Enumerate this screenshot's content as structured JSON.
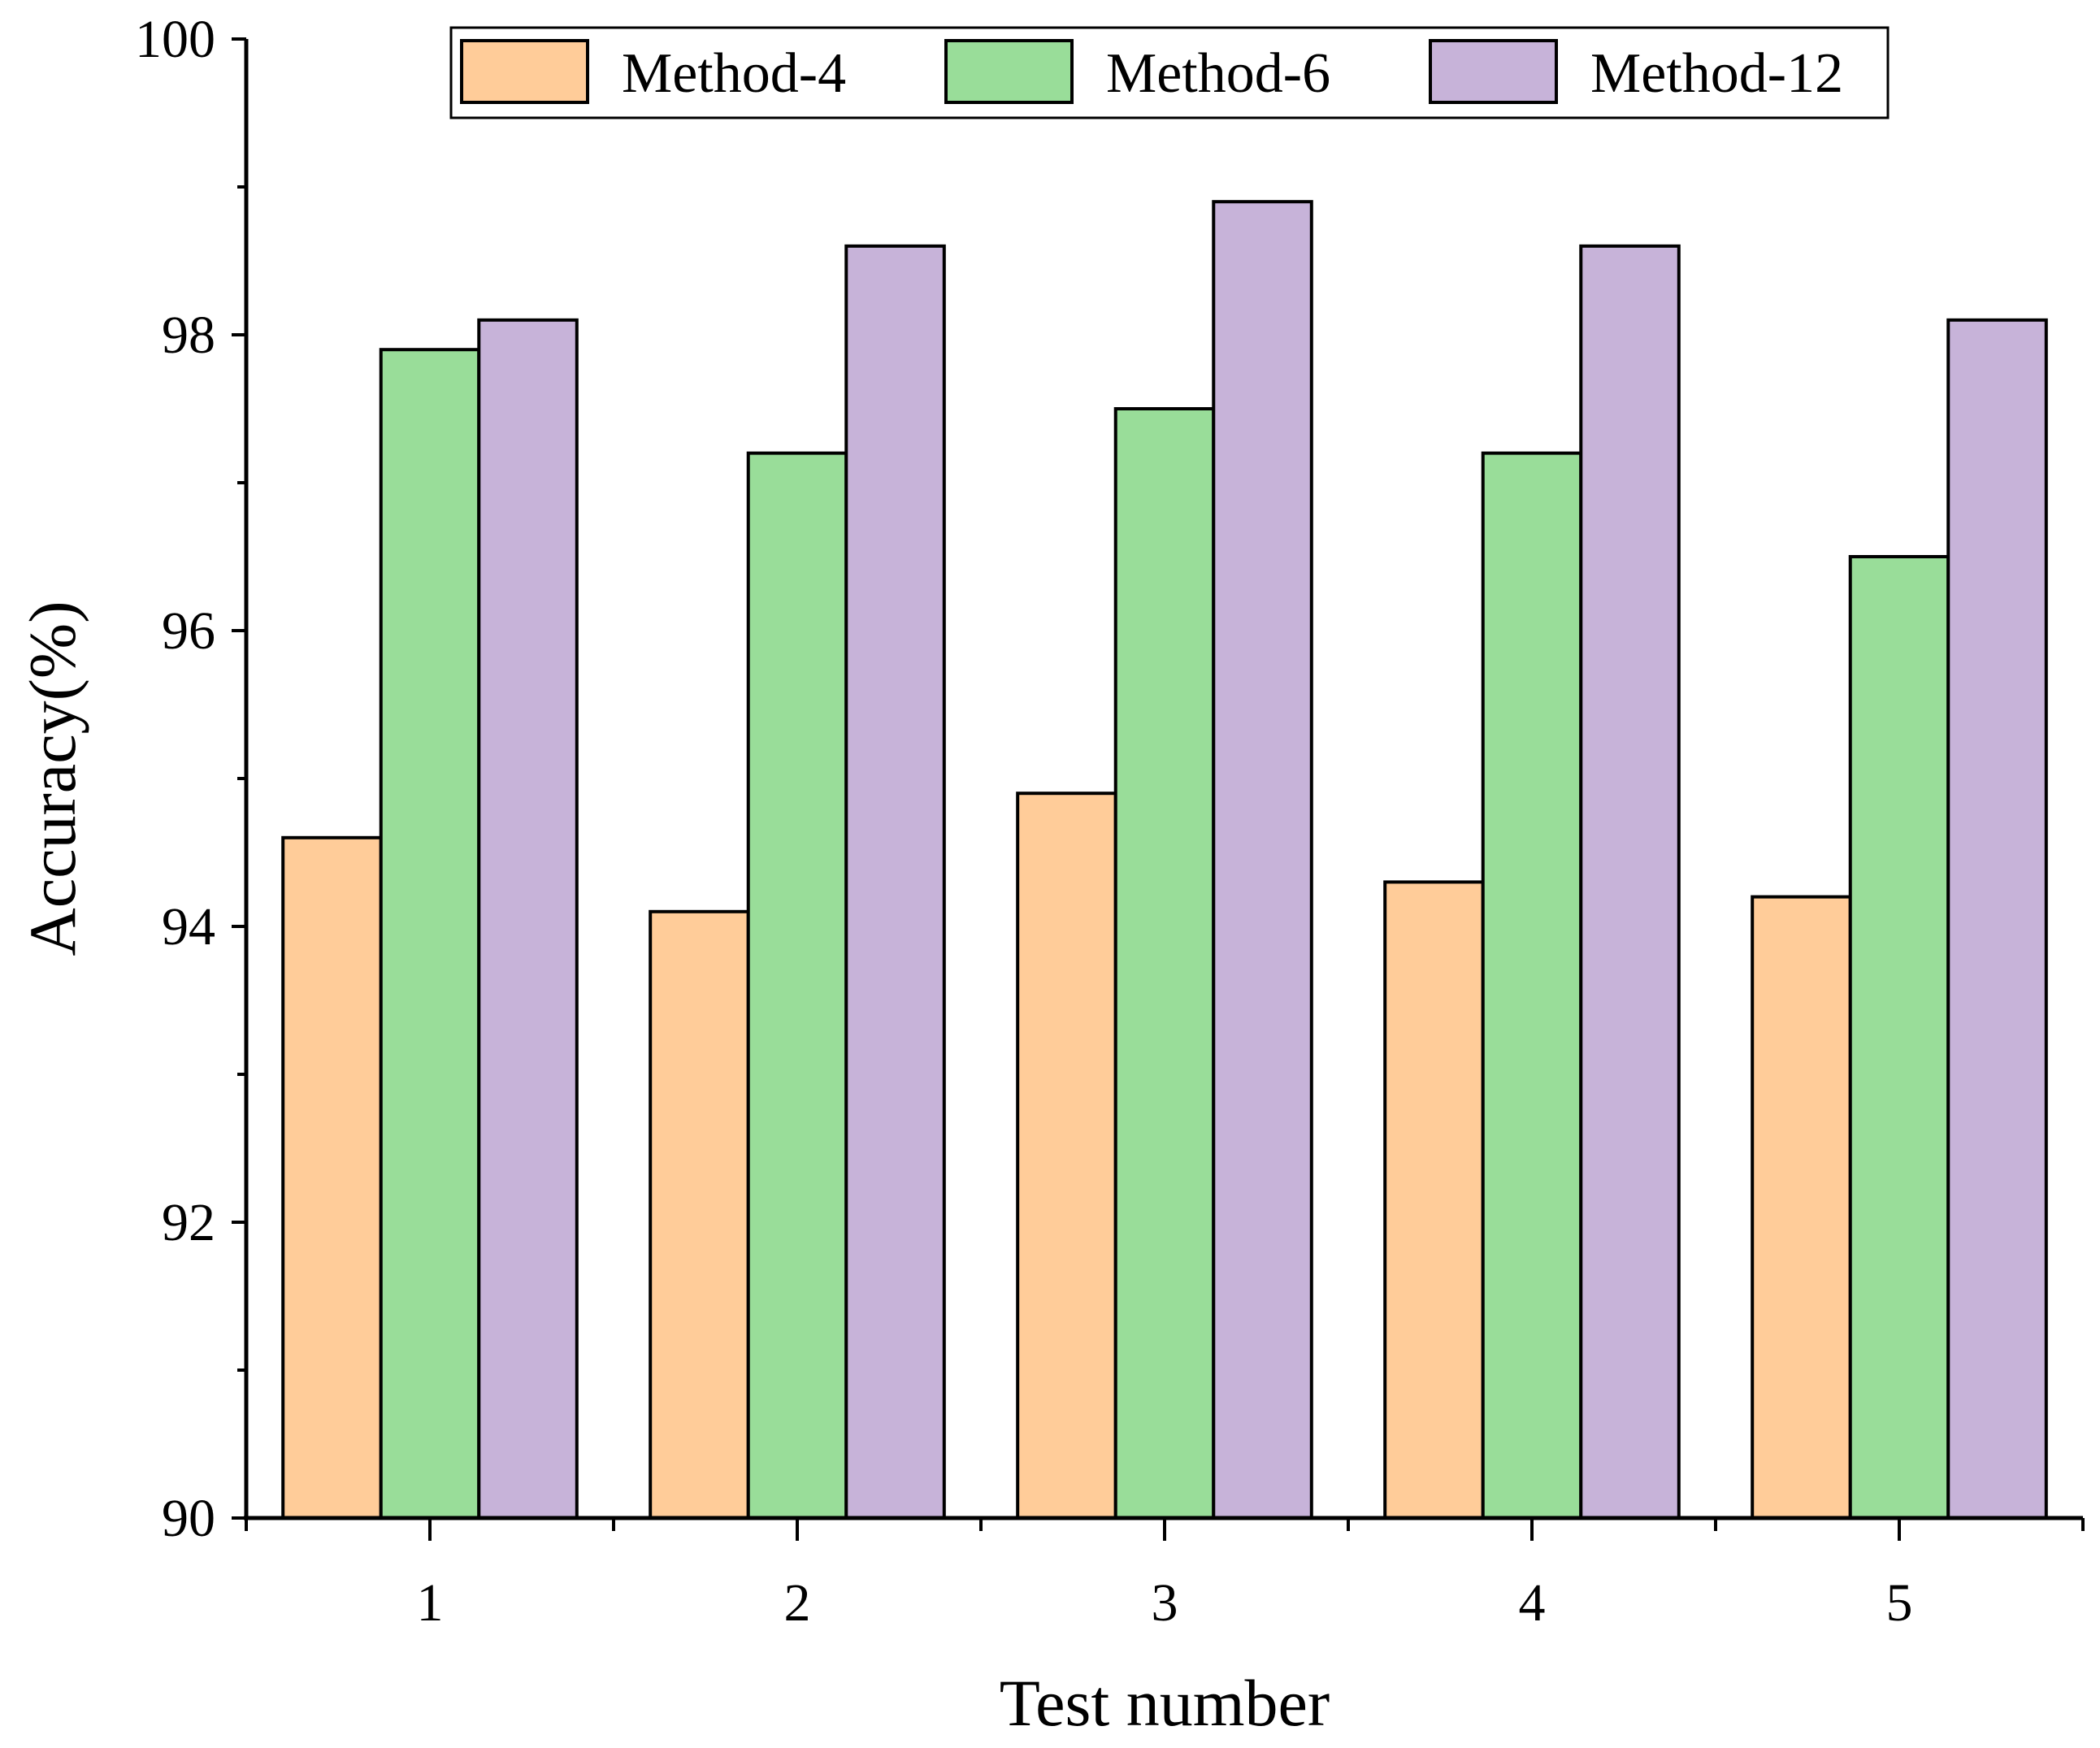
{
  "chart_data": {
    "type": "bar",
    "title": "",
    "xlabel": "Test number",
    "ylabel": "Accuracy(%)",
    "categories": [
      "1",
      "2",
      "3",
      "4",
      "5"
    ],
    "ylim": [
      90,
      100
    ],
    "yticks": [
      "90",
      "92",
      "94",
      "96",
      "98",
      "100"
    ],
    "ytick_values": [
      90,
      92,
      94,
      96,
      98,
      100
    ],
    "minor_tick_step": 1,
    "grid": false,
    "legend_position": "top",
    "series": [
      {
        "name": "Method-4",
        "color": "#FFCC99",
        "values": [
          94.6,
          94.1,
          94.9,
          94.3,
          94.2
        ]
      },
      {
        "name": "Method-6",
        "color": "#99DD99",
        "values": [
          97.9,
          97.2,
          97.5,
          97.2,
          96.5
        ]
      },
      {
        "name": "Method-12",
        "color": "#C7B3D9",
        "values": [
          98.1,
          98.6,
          98.9,
          98.6,
          98.1
        ]
      }
    ]
  }
}
